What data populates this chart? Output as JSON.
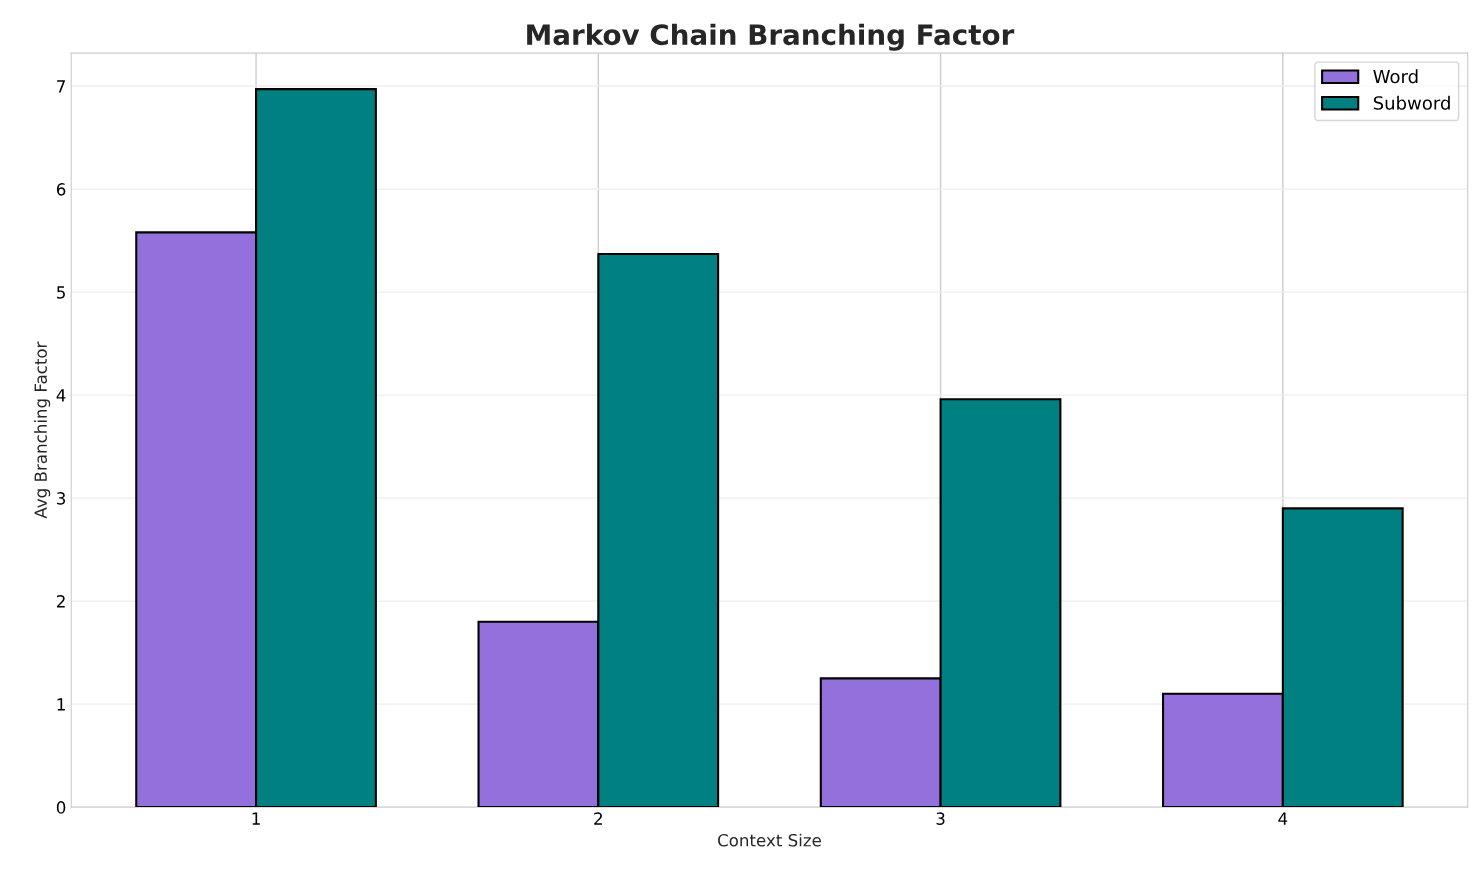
{
  "chart_data": {
    "type": "bar",
    "title": "Markov Chain Branching Factor",
    "xlabel": "Context Size",
    "ylabel": "Avg Branching Factor",
    "categories": [
      "1",
      "2",
      "3",
      "4"
    ],
    "series": [
      {
        "name": "Word",
        "color": "#9370db",
        "values": [
          5.58,
          1.8,
          1.25,
          1.1
        ]
      },
      {
        "name": "Subword",
        "color": "#008080",
        "values": [
          6.97,
          5.37,
          3.96,
          2.9
        ]
      }
    ],
    "ylim": [
      0,
      7.32
    ],
    "yticks": [
      0,
      1,
      2,
      3,
      4,
      5,
      6,
      7
    ],
    "grid": true,
    "legend": "top right"
  }
}
